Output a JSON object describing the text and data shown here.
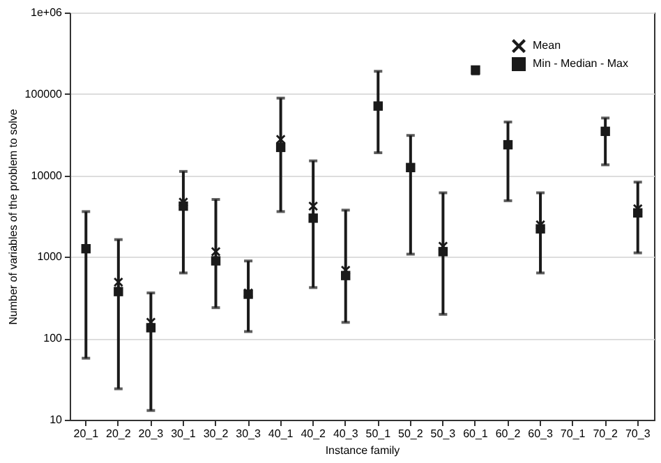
{
  "chart_data": {
    "type": "scatter",
    "xlabel": "Instance family",
    "ylabel": "Number of variables of the problem to solve",
    "categories": [
      "20_1",
      "20_2",
      "20_3",
      "30_1",
      "30_2",
      "30_3",
      "40_1",
      "40_2",
      "40_3",
      "50_1",
      "50_2",
      "50_3",
      "60_1",
      "60_2",
      "60_3",
      "70_1",
      "70_2",
      "70_3"
    ],
    "series": [
      {
        "name": "Mean",
        "color": "#1a1a1a",
        "marker": "cross",
        "values": [
          null,
          490,
          157,
          4700,
          1160,
          360,
          27700,
          4200,
          685,
          null,
          null,
          1350,
          null,
          null,
          2470,
          null,
          null,
          3900
        ]
      },
      {
        "name": "Min - Median - Max",
        "color": "#1a1a1a",
        "marker": "square",
        "values": [
          1260,
          375,
          135,
          4200,
          894,
          348,
          22100,
          2990,
          590,
          71100,
          12500,
          1160,
          197000,
          23800,
          2210,
          null,
          34800,
          3470
        ],
        "errors": [
          [
            57,
            3600
          ],
          [
            24,
            1630
          ],
          [
            13,
            361
          ],
          [
            635,
            11200
          ],
          [
            238,
            5070
          ],
          [
            121,
            890
          ],
          [
            3600,
            89000
          ],
          [
            420,
            15100
          ],
          [
            157,
            3750
          ],
          [
            19000,
            190000
          ],
          [
            1080,
            31000
          ],
          [
            197,
            6120
          ],
          [
            176000,
            213000
          ],
          [
            4890,
            45300
          ],
          [
            635,
            6120
          ],
          null,
          [
            13500,
            50700
          ],
          [
            1120,
            8280
          ]
        ]
      }
    ],
    "log": true,
    "ylim": [
      10,
      1000000
    ],
    "yticks": [
      10,
      100,
      1000,
      10000,
      100000,
      {
        "value": 1000000,
        "label": "1e+06"
      }
    ],
    "grid": "y",
    "legend": "top right"
  }
}
